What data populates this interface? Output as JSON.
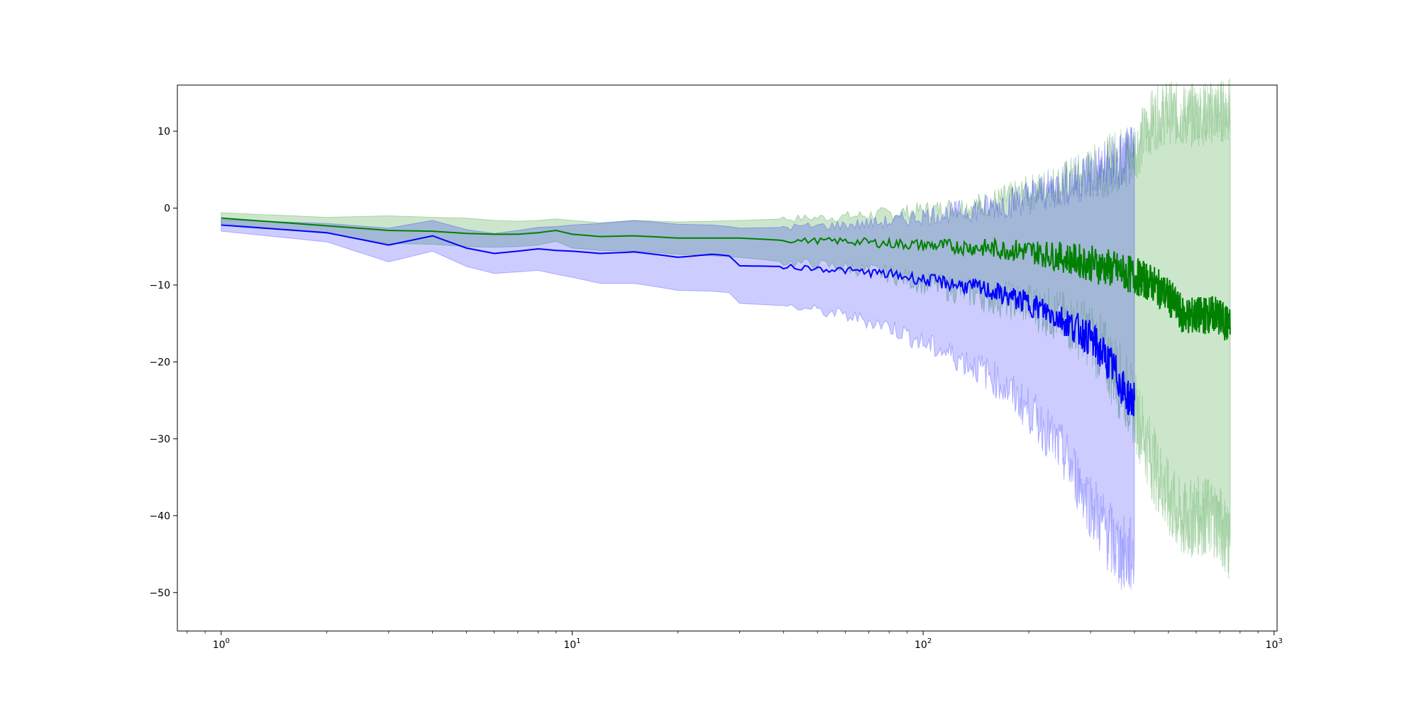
{
  "chart_data": {
    "type": "line",
    "title": "",
    "xlabel": "",
    "ylabel": "",
    "xscale": "log",
    "xlim": [
      0.75,
      1020
    ],
    "ylim": [
      -55,
      16
    ],
    "grid": false,
    "legend": "none",
    "x_ticks": [
      {
        "value": 1,
        "base": "10",
        "exp": "0"
      },
      {
        "value": 10,
        "base": "10",
        "exp": "1"
      },
      {
        "value": 100,
        "base": "10",
        "exp": "2"
      },
      {
        "value": 1000,
        "base": "10",
        "exp": "3"
      }
    ],
    "y_ticks": [
      {
        "value": 10,
        "label": "10"
      },
      {
        "value": 0,
        "label": "0"
      },
      {
        "value": -10,
        "label": "−10"
      },
      {
        "value": -20,
        "label": "−20"
      },
      {
        "value": -30,
        "label": "−30"
      },
      {
        "value": -40,
        "label": "−40"
      },
      {
        "value": -50,
        "label": "−50"
      }
    ],
    "series": [
      {
        "color": "#008000",
        "band_color": "#008000",
        "band_opacity": 0.2,
        "x": [
          1,
          2,
          3,
          4,
          5,
          6,
          7,
          8,
          9,
          10,
          12,
          15,
          20,
          30,
          40,
          60,
          80,
          100,
          150,
          200,
          300,
          400,
          450,
          500,
          550,
          600,
          680,
          740,
          750
        ],
        "y": [
          -1.3,
          -2.3,
          -2.9,
          -3.0,
          -3.3,
          -3.4,
          -3.4,
          -3.2,
          -2.9,
          -3.4,
          -3.7,
          -3.6,
          -3.9,
          -3.9,
          -4.2,
          -4.3,
          -4.6,
          -4.8,
          -5.2,
          -5.6,
          -7.2,
          -8.8,
          -9.8,
          -11.5,
          -14.0,
          -14.0,
          -13.8,
          -15.2,
          -15.5
        ],
        "upper": [
          -0.6,
          -1.2,
          -1.0,
          -1.2,
          -1.3,
          -1.6,
          -1.7,
          -1.6,
          -1.4,
          -1.6,
          -1.9,
          -1.6,
          -1.8,
          -1.6,
          -1.4,
          -1.1,
          -0.7,
          -0.3,
          0.5,
          2.0,
          4.5,
          7.5,
          11.5,
          12.5,
          12.0,
          12.2,
          12.5,
          12.8,
          12.8
        ],
        "lower": [
          -2.0,
          -3.3,
          -4.6,
          -4.7,
          -5.0,
          -5.1,
          -5.0,
          -4.8,
          -4.3,
          -5.2,
          -5.5,
          -5.6,
          -6.0,
          -6.4,
          -7.0,
          -7.7,
          -8.6,
          -9.8,
          -11.5,
          -12.5,
          -16.5,
          -26.0,
          -33.0,
          -38.0,
          -41.0,
          -40.0,
          -40.3,
          -43.0,
          -44.0
        ]
      },
      {
        "color": "#0000ff",
        "band_color": "#0000ff",
        "band_opacity": 0.2,
        "x": [
          1,
          2,
          3,
          4,
          5,
          6,
          7,
          8,
          9,
          10,
          12,
          15,
          20,
          25,
          28,
          30,
          40,
          60,
          80,
          100,
          150,
          200,
          250,
          300,
          350,
          380,
          400
        ],
        "y": [
          -2.2,
          -3.2,
          -4.8,
          -3.6,
          -5.2,
          -5.9,
          -5.6,
          -5.3,
          -5.5,
          -5.6,
          -5.9,
          -5.7,
          -6.4,
          -6.0,
          -6.2,
          -7.5,
          -7.6,
          -8.1,
          -8.6,
          -9.3,
          -10.6,
          -12.4,
          -14.5,
          -17.0,
          -21.0,
          -24.5,
          -25.0
        ],
        "upper": [
          -1.5,
          -2.0,
          -2.6,
          -1.6,
          -2.8,
          -3.3,
          -2.9,
          -2.5,
          -2.4,
          -2.2,
          -2.0,
          -1.6,
          -2.1,
          -2.2,
          -2.4,
          -2.6,
          -2.5,
          -2.2,
          -1.8,
          -1.0,
          0.0,
          1.5,
          3.0,
          4.5,
          5.5,
          6.5,
          6.5
        ],
        "lower": [
          -3.0,
          -4.4,
          -7.0,
          -5.6,
          -7.6,
          -8.5,
          -8.3,
          -8.1,
          -8.6,
          -9.0,
          -9.8,
          -9.8,
          -10.7,
          -10.8,
          -11.0,
          -12.4,
          -12.7,
          -14.0,
          -15.4,
          -17.6,
          -21.3,
          -26.3,
          -32.0,
          -38.5,
          -44.0,
          -45.5,
          -45.0
        ]
      }
    ]
  }
}
